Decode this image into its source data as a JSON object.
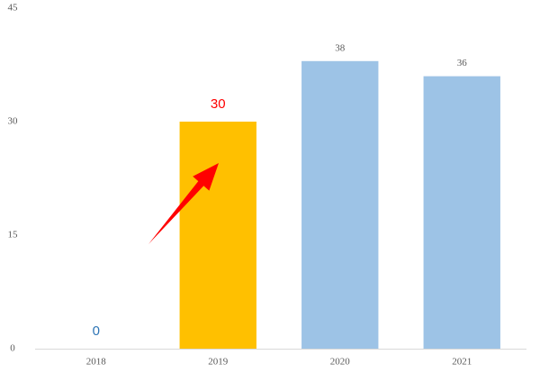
{
  "chart_data": {
    "type": "bar",
    "categories": [
      "2018",
      "2019",
      "2020",
      "2021"
    ],
    "values": [
      0,
      30,
      38,
      36
    ],
    "colors": [
      "#9dc3e6",
      "#ffc000",
      "#9dc3e6",
      "#9dc3e6"
    ],
    "label_colors": [
      "#2e75b6",
      "#ff0000",
      "#595959",
      "#595959"
    ],
    "ylim": [
      0,
      45
    ],
    "yticks": [
      0,
      15,
      30,
      45
    ],
    "grid": false
  }
}
